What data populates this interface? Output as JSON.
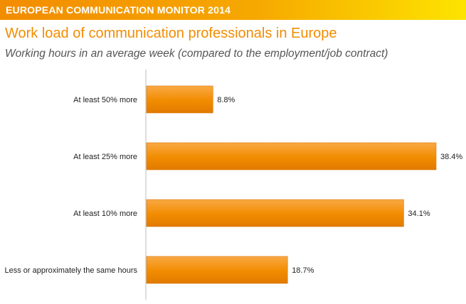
{
  "header": {
    "title": "EUROPEAN COMMUNICATION MONITOR 2014"
  },
  "main": {
    "title": "Work load of communication professionals in Europe",
    "subtitle": "Working hours in an average week (compared to the employment/job contract)"
  },
  "colors": {
    "bar": "#f28c00",
    "bar_light": "#f9a944",
    "header_start": "#f28c00",
    "header_end": "#fde400",
    "title": "#f28c00"
  },
  "chart_data": {
    "type": "bar",
    "orientation": "horizontal",
    "categories": [
      "At least 50% more",
      "At least 25% more",
      "At least 10% more",
      "Less or approximately the same hours"
    ],
    "values": [
      8.8,
      38.4,
      34.1,
      18.7
    ],
    "value_labels": [
      "8.8%",
      "38.4%",
      "34.1%",
      "18.7%"
    ],
    "unit": "%",
    "xlim": [
      0,
      38.4
    ],
    "grid": false,
    "legend": "none"
  }
}
